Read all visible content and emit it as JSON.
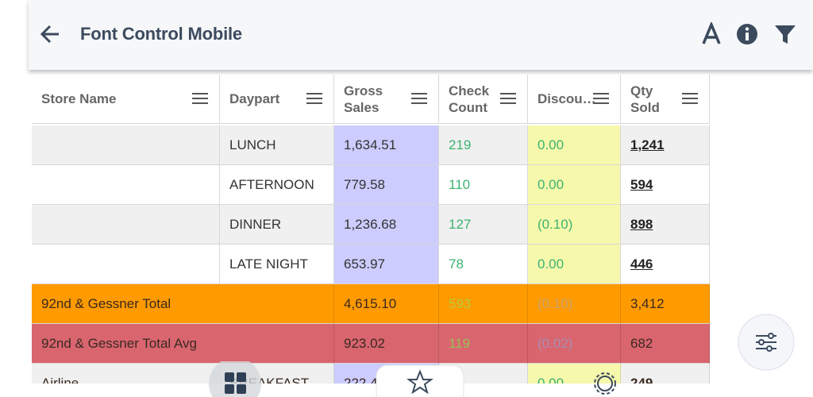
{
  "header": {
    "title": "Font Control Mobile"
  },
  "table": {
    "columns": [
      "Store Name",
      "Daypart",
      "Gross Sales",
      "Check Count",
      "Discou…",
      "Qty Sold"
    ],
    "rows": [
      [
        null,
        "LUNCH",
        "1,634.51",
        "219",
        "0.00",
        "1,241"
      ],
      [
        null,
        "AFTERNOON",
        "779.58",
        "110",
        "0.00",
        "594"
      ],
      [
        null,
        "DINNER",
        "1,236.68",
        "127",
        "(0.10)",
        "898"
      ],
      [
        null,
        "LATE NIGHT",
        "653.97",
        "78",
        "0.00",
        "446"
      ],
      [
        "92nd & Gessner Total",
        null,
        "4,615.10",
        "593",
        "(0.10)",
        "3,412"
      ],
      [
        "92nd & Gessner Total Avg",
        null,
        "923.02",
        "119",
        "(0.02)",
        "682"
      ],
      [
        "Airline",
        "BREAKFAST",
        "222.4",
        null,
        "0.00",
        "249"
      ]
    ]
  }
}
